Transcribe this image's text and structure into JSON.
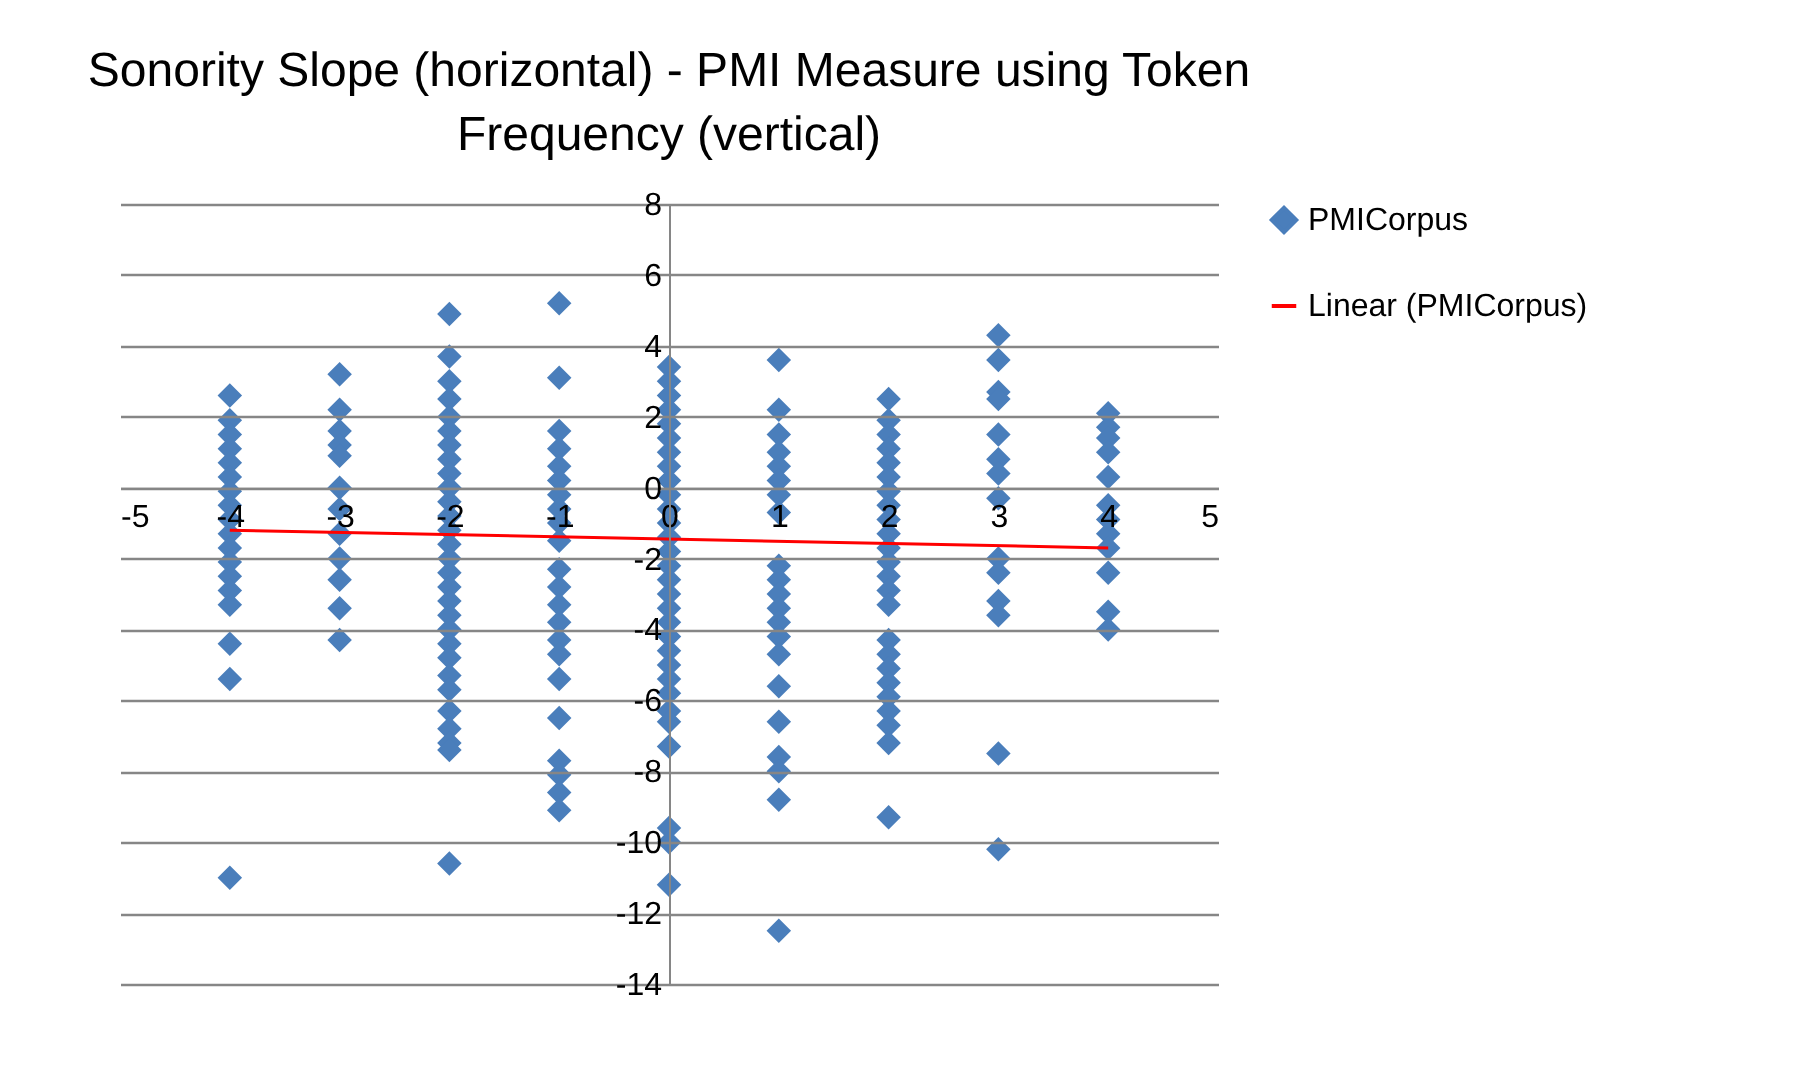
{
  "chart_data": {
    "type": "scatter",
    "title": "Sonority Slope (horizontal) - PMI Measure using Token Frequency (vertical)",
    "xlim": [
      -5,
      5
    ],
    "xticks": [
      -5,
      -4,
      -3,
      -2,
      -1,
      0,
      1,
      2,
      3,
      4,
      5
    ],
    "ylim": [
      -14,
      8
    ],
    "yticks": [
      -14,
      -12,
      -10,
      -8,
      -6,
      -4,
      -2,
      0,
      2,
      4,
      6,
      8
    ],
    "grid": "y",
    "legend": "right",
    "series": [
      {
        "name": "PMICorpus",
        "color": "#4a7ebb",
        "marker": "diamond",
        "x": [
          -4,
          -4,
          -4,
          -4,
          -4,
          -4,
          -4,
          -4,
          -4,
          -4,
          -4,
          -4,
          -4,
          -4,
          -4,
          -4,
          -4,
          -4,
          -3,
          -3,
          -3,
          -3,
          -3,
          -3,
          -3,
          -3,
          -3,
          -3,
          -3,
          -3,
          -2,
          -2,
          -2,
          -2,
          -2,
          -2,
          -2,
          -2,
          -2,
          -2,
          -2,
          -2,
          -2,
          -2,
          -2,
          -2,
          -2,
          -2,
          -2,
          -2,
          -2,
          -2,
          -2,
          -2,
          -2,
          -2,
          -2,
          -2,
          -2,
          -1,
          -1,
          -1,
          -1,
          -1,
          -1,
          -1,
          -1,
          -1,
          -1,
          -1,
          -1,
          -1,
          -1,
          -1,
          -1,
          -1,
          -1,
          -1,
          -1,
          -1,
          -1,
          0,
          0,
          0,
          0,
          0,
          0,
          0,
          0,
          0,
          0,
          0,
          0,
          0,
          0,
          0,
          0,
          0,
          0,
          0,
          0,
          0,
          0,
          0,
          0,
          0,
          0,
          0,
          0,
          0,
          0,
          1,
          1,
          1,
          1,
          1,
          1,
          1,
          1,
          1,
          1,
          1,
          1,
          1,
          1,
          1,
          1,
          1,
          1,
          1,
          1,
          1,
          2,
          2,
          2,
          2,
          2,
          2,
          2,
          2,
          2,
          2,
          2,
          2,
          2,
          2,
          2,
          2,
          2,
          2,
          2,
          2,
          2,
          2,
          2,
          2,
          3,
          3,
          3,
          3,
          3,
          3,
          3,
          3,
          3,
          3,
          3,
          3,
          3,
          3,
          4,
          4,
          4,
          4,
          4,
          4,
          4,
          4,
          4,
          4,
          4,
          4
        ],
        "values": [
          2.6,
          1.9,
          1.5,
          1.1,
          0.7,
          0.3,
          -0.1,
          -0.5,
          -0.9,
          -1.3,
          -1.7,
          -2.1,
          -2.5,
          -2.9,
          -3.3,
          -4.4,
          -5.4,
          -11.0,
          3.2,
          2.2,
          1.6,
          1.2,
          0.9,
          0.0,
          -0.6,
          -1.3,
          -2.0,
          -2.6,
          -3.4,
          -4.3,
          4.9,
          3.7,
          3.0,
          2.5,
          2.0,
          1.6,
          1.2,
          0.8,
          0.4,
          0.0,
          -0.4,
          -0.8,
          -1.2,
          -1.6,
          -2.0,
          -2.4,
          -2.8,
          -3.2,
          -3.6,
          -4.0,
          -4.4,
          -4.8,
          -5.3,
          -5.7,
          -6.3,
          -6.8,
          -7.2,
          -7.4,
          -10.6,
          5.2,
          3.1,
          1.6,
          1.1,
          0.6,
          0.2,
          -0.2,
          -0.6,
          -1.0,
          -1.5,
          -2.3,
          -2.8,
          -3.3,
          -3.8,
          -4.3,
          -4.7,
          -5.4,
          -6.5,
          -7.7,
          -8.1,
          -8.6,
          -9.1,
          3.4,
          3.0,
          2.6,
          2.2,
          1.8,
          1.4,
          1.0,
          0.6,
          0.2,
          -0.2,
          -0.6,
          -1.0,
          -1.4,
          -1.8,
          -2.2,
          -2.6,
          -3.0,
          -3.4,
          -3.8,
          -4.2,
          -4.6,
          -5.0,
          -5.4,
          -5.8,
          -6.3,
          -6.6,
          -7.3,
          -9.6,
          -10.0,
          -11.2,
          3.6,
          2.2,
          1.5,
          1.0,
          0.6,
          0.2,
          -0.2,
          -0.7,
          -2.2,
          -2.6,
          -3.0,
          -3.4,
          -3.8,
          -4.2,
          -4.7,
          -5.6,
          -6.6,
          -7.6,
          -8.0,
          -8.8,
          -12.5,
          2.5,
          1.9,
          1.5,
          1.1,
          0.7,
          0.3,
          -0.1,
          -0.5,
          -0.9,
          -1.3,
          -1.7,
          -2.1,
          -2.5,
          -2.9,
          -3.3,
          -4.3,
          -4.7,
          -5.1,
          -5.5,
          -5.9,
          -6.3,
          -6.7,
          -7.2,
          -9.3,
          4.3,
          3.6,
          2.7,
          2.5,
          1.5,
          0.8,
          0.4,
          -0.3,
          -2.0,
          -2.4,
          -3.2,
          -3.6,
          -7.5,
          -10.2,
          2.1,
          1.7,
          1.4,
          1.0,
          0.3,
          -0.5,
          -0.9,
          -1.3,
          -1.7,
          -2.4,
          -3.5,
          -4.0
        ]
      },
      {
        "name": "Linear (PMICorpus)",
        "color": "#ff0000",
        "type": "line",
        "marker": "none",
        "x": [
          -4,
          4
        ],
        "values": [
          -1.2,
          -1.7
        ]
      }
    ]
  }
}
